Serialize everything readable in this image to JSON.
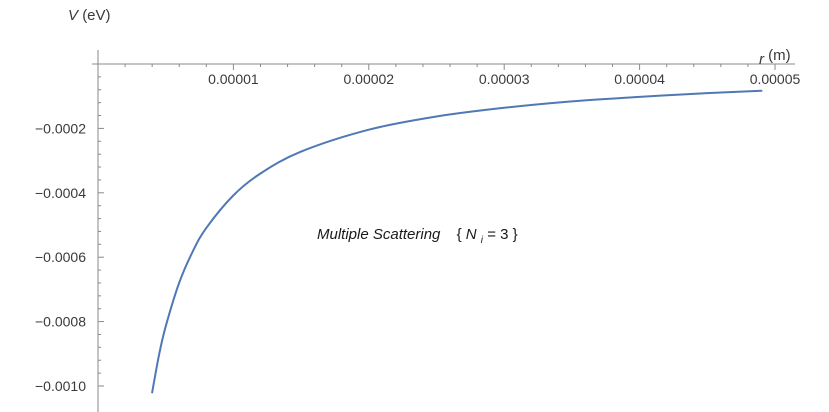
{
  "chart_data": {
    "type": "line",
    "title": "",
    "ylabel": {
      "symbol": "V",
      "unit": "(eV)"
    },
    "xlabel": {
      "symbol": "r",
      "unit": "(m)"
    },
    "xlim": [
      0,
      5e-05
    ],
    "ylim": [
      -0.00105,
      0
    ],
    "x_ticks": [
      {
        "value": 1e-05,
        "label": "0.00001"
      },
      {
        "value": 2e-05,
        "label": "0.00002"
      },
      {
        "value": 3e-05,
        "label": "0.00003"
      },
      {
        "value": 4e-05,
        "label": "0.00004"
      },
      {
        "value": 5e-05,
        "label": "0.00005"
      }
    ],
    "y_ticks": [
      {
        "value": -0.0002,
        "label": "-0.0002"
      },
      {
        "value": -0.0004,
        "label": "-0.0004"
      },
      {
        "value": -0.0006,
        "label": "-0.0006"
      },
      {
        "value": -0.0008,
        "label": "-0.0008"
      },
      {
        "value": -0.001,
        "label": "-0.0010"
      }
    ],
    "annotation": {
      "text": "Multiple Scattering",
      "param": {
        "symbol": "N",
        "subscript": "i",
        "value": "3"
      }
    },
    "series": [
      {
        "color": "#5078b4",
        "x": [
          4e-06,
          4.5e-06,
          5e-06,
          6e-06,
          7e-06,
          8e-06,
          1e-05,
          1.2e-05,
          1.5e-05,
          2e-05,
          2.5e-05,
          3e-05,
          3.5e-05,
          4e-05,
          4.5e-05,
          4.9e-05
        ],
        "y": [
          -0.00102,
          -0.000905,
          -0.000815,
          -0.000679,
          -0.000582,
          -0.000509,
          -0.000408,
          -0.00034,
          -0.000272,
          -0.000204,
          -0.000163,
          -0.000136,
          -0.000116,
          -0.000102,
          -9.06e-05,
          -8.32e-05
        ]
      }
    ]
  }
}
